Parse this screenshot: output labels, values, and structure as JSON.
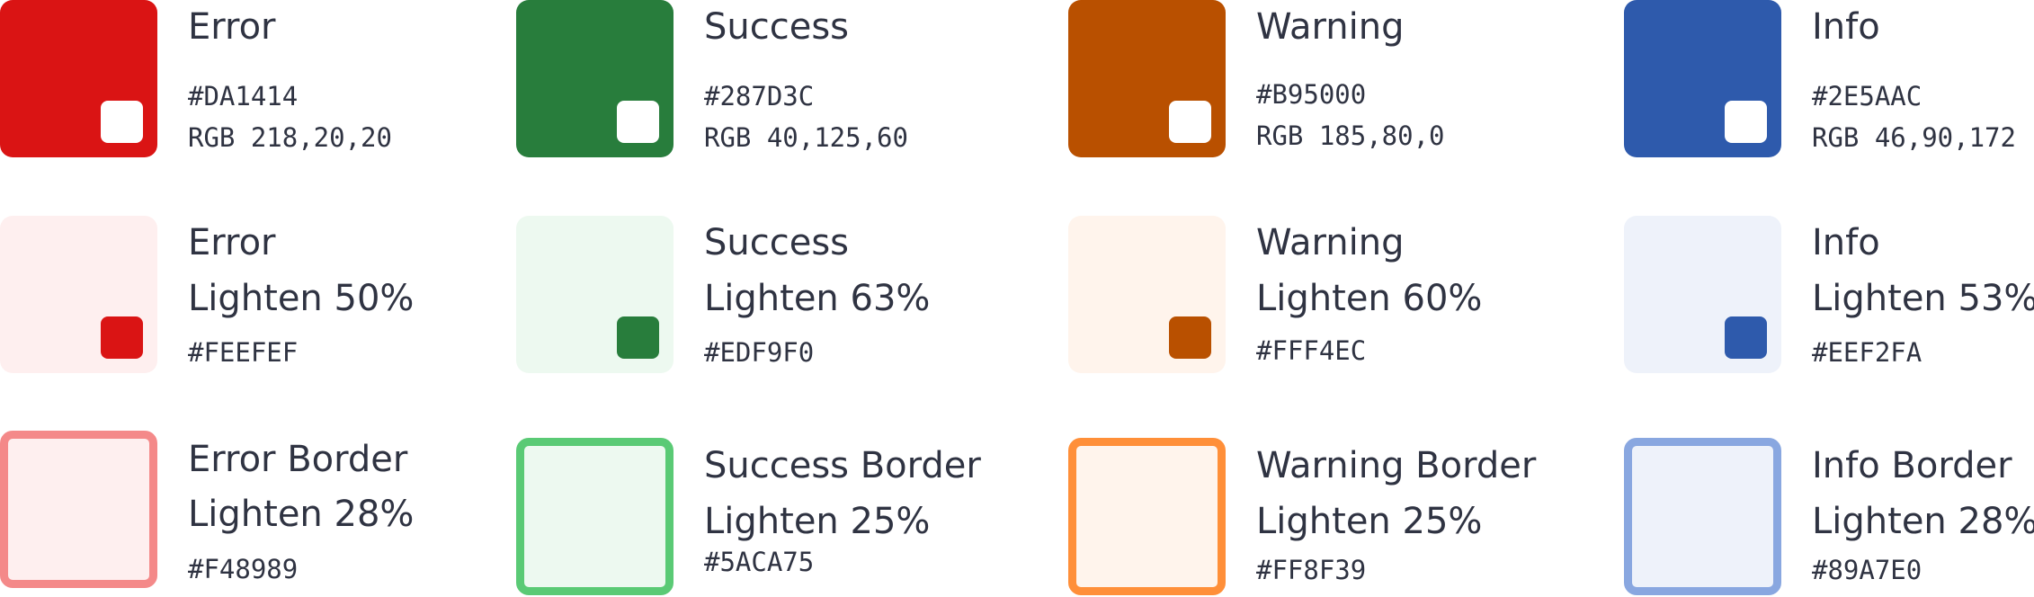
{
  "palette": {
    "error": {
      "base": {
        "name": "Error",
        "hex": "#DA1414",
        "rgb": "RGB 218,20,20",
        "color": "#DA1414"
      },
      "light": {
        "name": "Error",
        "desc": "Lighten 50%",
        "hex": "#FEEFEF",
        "color": "#FEEFEF",
        "chip": "#DA1414"
      },
      "border": {
        "name": "Error Border",
        "desc": "Lighten 28%",
        "hex": "#F48989",
        "color": "#F48989",
        "fill": "#FEEFEF"
      }
    },
    "success": {
      "base": {
        "name": "Success",
        "hex": "#287D3C",
        "rgb": "RGB 40,125,60",
        "color": "#287D3C"
      },
      "light": {
        "name": "Success",
        "desc": "Lighten 63%",
        "hex": "#EDF9F0",
        "color": "#EDF9F0",
        "chip": "#287D3C"
      },
      "border": {
        "name": "Success Border",
        "desc": "Lighten 25%",
        "hex": "#5ACA75",
        "color": "#5ACA75",
        "fill": "#EDF9F0"
      }
    },
    "warning": {
      "base": {
        "name": "Warning",
        "hex": "#B95000",
        "rgb": "RGB 185,80,0",
        "color": "#B95000"
      },
      "light": {
        "name": "Warning",
        "desc": "Lighten 60%",
        "hex": "#FFF4EC",
        "color": "#FFF4EC",
        "chip": "#B95000"
      },
      "border": {
        "name": "Warning Border",
        "desc": "Lighten 25%",
        "hex": "#FF8F39",
        "color": "#FF8F39",
        "fill": "#FFF4EC"
      }
    },
    "info": {
      "base": {
        "name": "Info",
        "hex": "#2E5AAC",
        "rgb": "RGB 46,90,172",
        "color": "#2E5AAC"
      },
      "light": {
        "name": "Info",
        "desc": "Lighten 53%",
        "hex": "#EEF2FA",
        "color": "#EEF2FA",
        "chip": "#2E5AAC"
      },
      "border": {
        "name": "Info Border",
        "desc": "Lighten 28%",
        "hex": "#89A7E0",
        "color": "#89A7E0",
        "fill": "#EEF2FA"
      }
    }
  },
  "text_color": "#2F3342",
  "chip_white": "#FFFFFF"
}
